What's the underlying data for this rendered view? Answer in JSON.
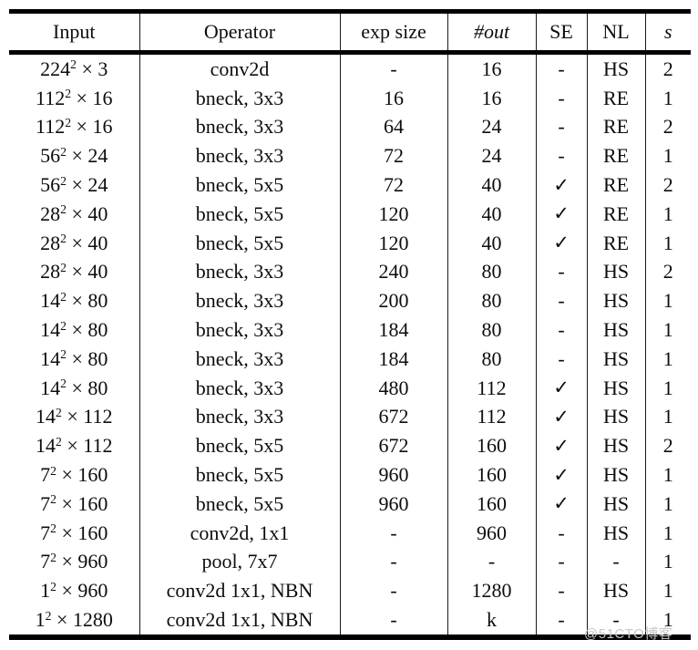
{
  "page": {
    "background": "#ffffff",
    "text_color": "#0d0d0d",
    "rule_color": "#000000"
  },
  "table": {
    "columns": [
      {
        "id": "input",
        "label": "Input",
        "italic": false
      },
      {
        "id": "operator",
        "label": "Operator",
        "italic": false
      },
      {
        "id": "exp_size",
        "label": "exp size",
        "italic": false
      },
      {
        "id": "out",
        "label": "#out",
        "italic": true
      },
      {
        "id": "se",
        "label": "SE",
        "italic": false
      },
      {
        "id": "nl",
        "label": "NL",
        "italic": false
      },
      {
        "id": "s",
        "label": "s",
        "italic": true
      }
    ],
    "check_glyph": "✓",
    "dash_glyph": "-",
    "rows": [
      [
        "224^2 × 3",
        "conv2d",
        "-",
        "16",
        "-",
        "HS",
        "2"
      ],
      [
        "112^2 × 16",
        "bneck, 3x3",
        "16",
        "16",
        "-",
        "RE",
        "1"
      ],
      [
        "112^2 × 16",
        "bneck, 3x3",
        "64",
        "24",
        "-",
        "RE",
        "2"
      ],
      [
        "56^2 × 24",
        "bneck, 3x3",
        "72",
        "24",
        "-",
        "RE",
        "1"
      ],
      [
        "56^2 × 24",
        "bneck, 5x5",
        "72",
        "40",
        "✓",
        "RE",
        "2"
      ],
      [
        "28^2 × 40",
        "bneck, 5x5",
        "120",
        "40",
        "✓",
        "RE",
        "1"
      ],
      [
        "28^2 × 40",
        "bneck, 5x5",
        "120",
        "40",
        "✓",
        "RE",
        "1"
      ],
      [
        "28^2 × 40",
        "bneck, 3x3",
        "240",
        "80",
        "-",
        "HS",
        "2"
      ],
      [
        "14^2 × 80",
        "bneck, 3x3",
        "200",
        "80",
        "-",
        "HS",
        "1"
      ],
      [
        "14^2 × 80",
        "bneck, 3x3",
        "184",
        "80",
        "-",
        "HS",
        "1"
      ],
      [
        "14^2 × 80",
        "bneck, 3x3",
        "184",
        "80",
        "-",
        "HS",
        "1"
      ],
      [
        "14^2 × 80",
        "bneck, 3x3",
        "480",
        "112",
        "✓",
        "HS",
        "1"
      ],
      [
        "14^2 × 112",
        "bneck, 3x3",
        "672",
        "112",
        "✓",
        "HS",
        "1"
      ],
      [
        "14^2 × 112",
        "bneck, 5x5",
        "672",
        "160",
        "✓",
        "HS",
        "2"
      ],
      [
        "7^2 × 160",
        "bneck, 5x5",
        "960",
        "160",
        "✓",
        "HS",
        "1"
      ],
      [
        "7^2 × 160",
        "bneck, 5x5",
        "960",
        "160",
        "✓",
        "HS",
        "1"
      ],
      [
        "7^2 × 160",
        "conv2d, 1x1",
        "-",
        "960",
        "-",
        "HS",
        "1"
      ],
      [
        "7^2 × 960",
        "pool, 7x7",
        "-",
        "-",
        "-",
        "-",
        "1"
      ],
      [
        "1^2 × 960",
        "conv2d 1x1, NBN",
        "-",
        "1280",
        "-",
        "HS",
        "1"
      ],
      [
        "1^2 × 1280",
        "conv2d 1x1, NBN",
        "-",
        "k",
        "-",
        "-",
        "1"
      ]
    ]
  },
  "watermark": {
    "text": "@51CTO博客",
    "color": "#c9c9c9"
  }
}
